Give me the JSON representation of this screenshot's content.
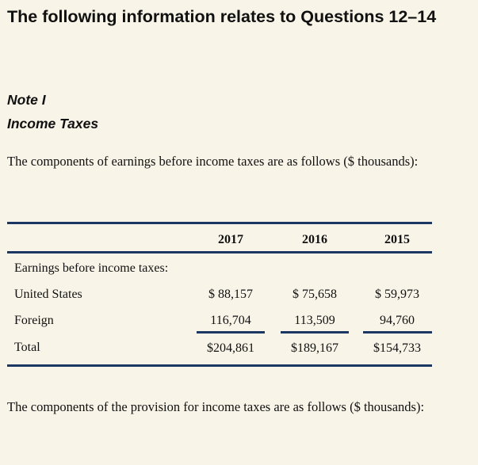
{
  "heading": "The following information relates to Questions 12–14",
  "note": {
    "number": "Note I",
    "title": "Income Taxes"
  },
  "intro_text": "The components of earnings before income taxes are as follows ($ thousands):",
  "table": {
    "columns": [
      "2017",
      "2016",
      "2015"
    ],
    "section_label": "Earnings before income taxes:",
    "rows": [
      {
        "label": "United States",
        "values": [
          "$ 88,157",
          "$ 75,658",
          "$ 59,973"
        ]
      },
      {
        "label": "Foreign",
        "values": [
          "116,704",
          "113,509",
          "94,760"
        ]
      },
      {
        "label": "Total",
        "values": [
          "$204,861",
          "$189,167",
          "$154,733"
        ]
      }
    ]
  },
  "outro_text": "The components of the provision for income taxes are as follows ($ thousands):",
  "colors": {
    "background": "#f8f4e8",
    "rule": "#1c3763"
  }
}
